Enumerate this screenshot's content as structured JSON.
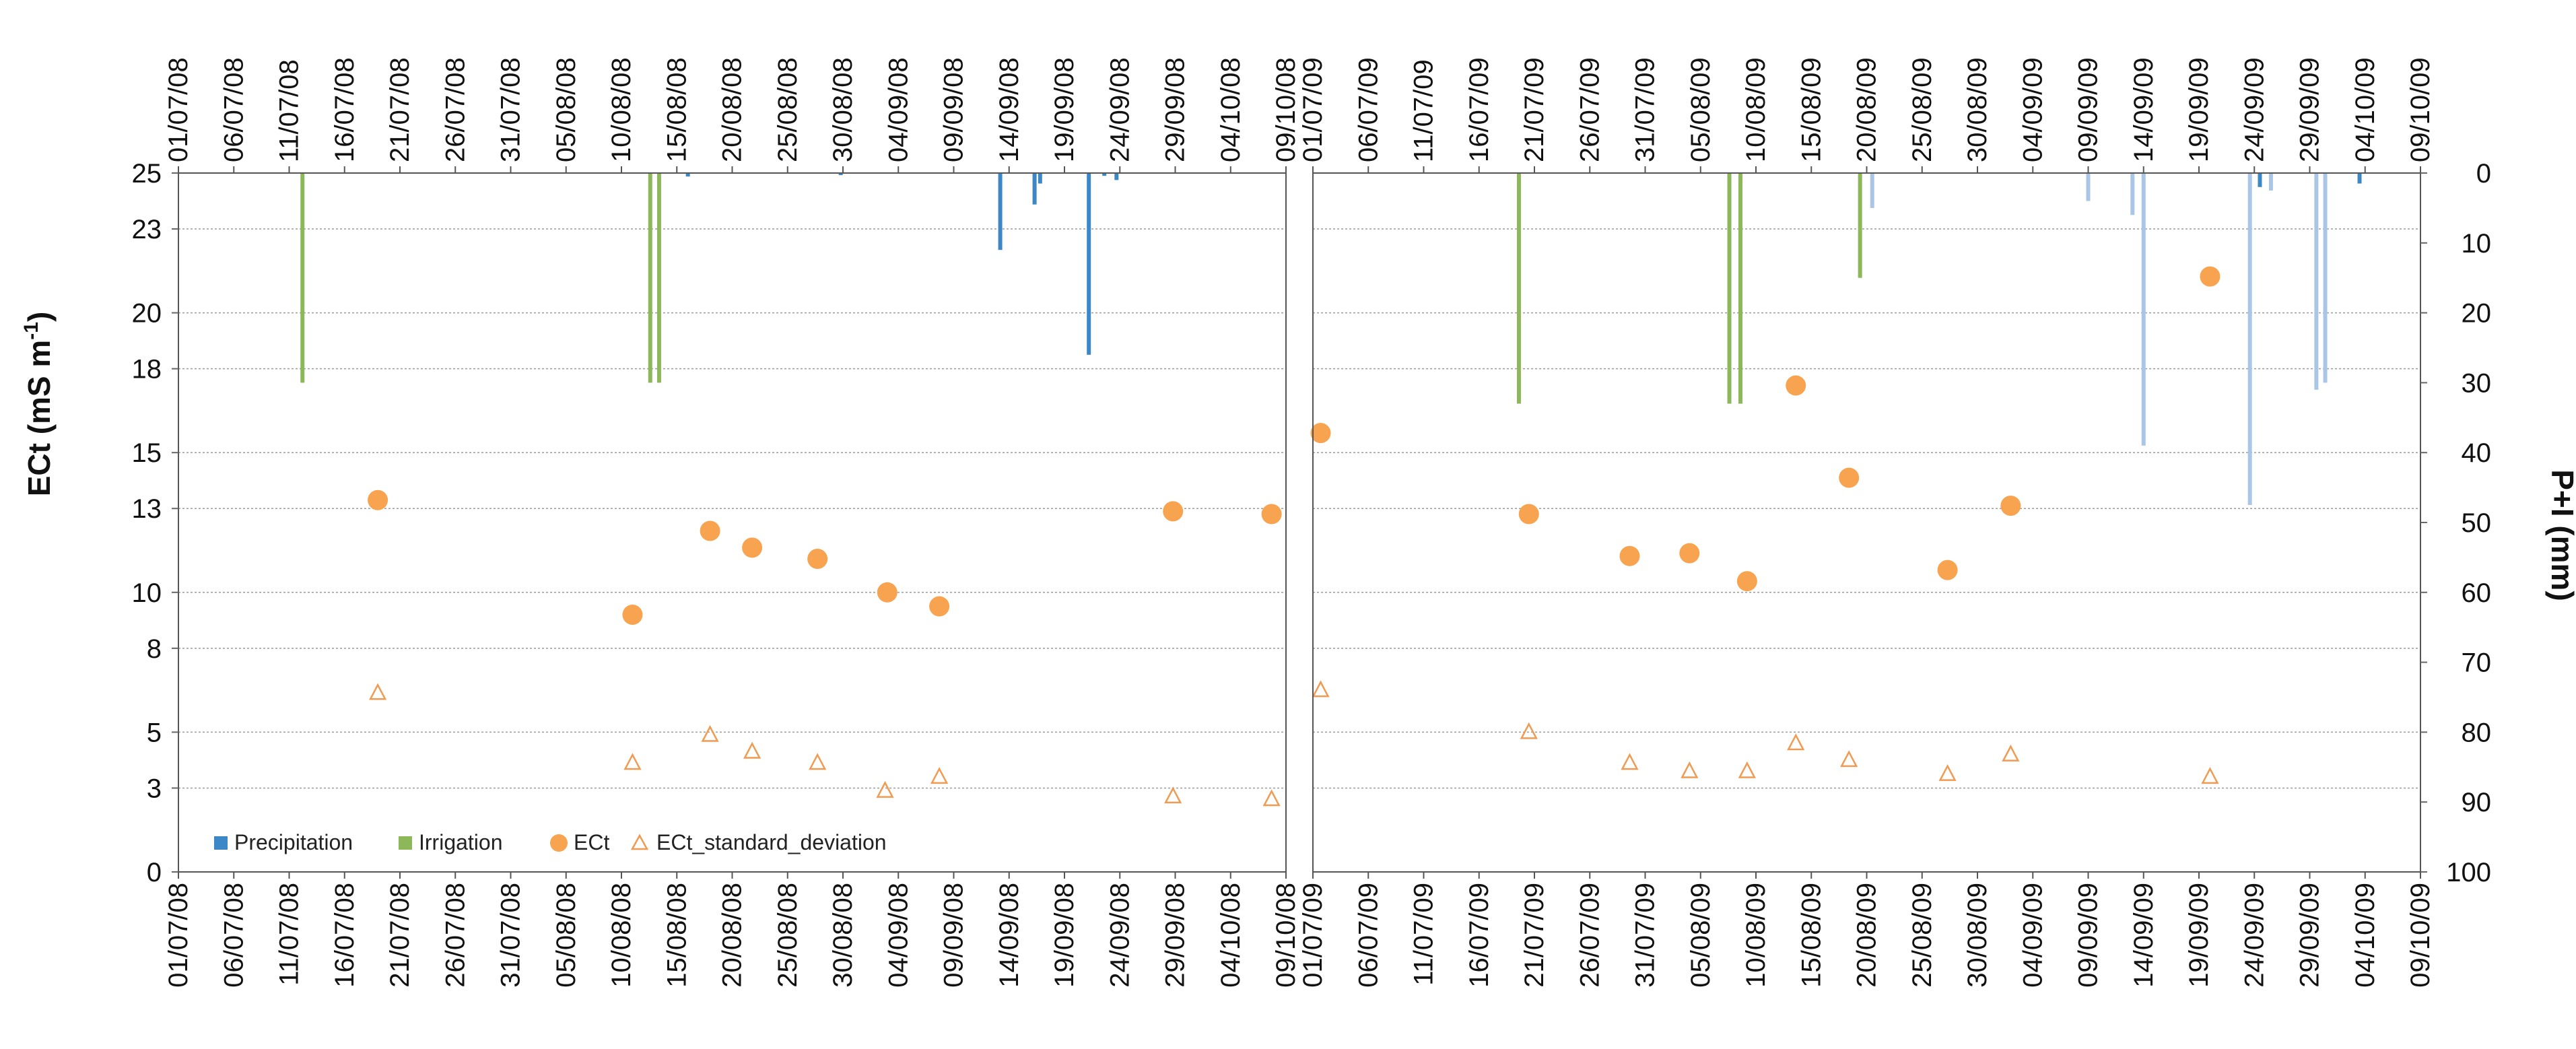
{
  "chart_data": {
    "type": "bar+scatter",
    "layout": "two-panel",
    "ylabel_left": "ECt (mS m",
    "ylabel_left_sup": "-1",
    "ylabel_left_close": ")",
    "ylabel_right": "P+I (mm)",
    "y_left_ticks": [
      0,
      3,
      5,
      8,
      10,
      13,
      15,
      18,
      20,
      23,
      25
    ],
    "y_left_lim": [
      0,
      25
    ],
    "y_right_ticks": [
      0,
      10,
      20,
      30,
      40,
      50,
      60,
      70,
      80,
      90,
      100
    ],
    "y_right_lim": [
      100,
      0
    ],
    "colors": {
      "precipitation": "#3c87c6",
      "precipitation_light": "#aac6e6",
      "irrigation": "#8db85a",
      "ect": "#f7a350",
      "ect_sd": "#f09a52",
      "grid": "#9a9a9a"
    },
    "legend": {
      "position": "bottom-left",
      "precipitation": "Precipitation",
      "irrigation": "Irrigation",
      "ect": "ECt",
      "ect_sd": "ECt_standard_deviation"
    },
    "panels": [
      {
        "year": "2008",
        "x_ticks": [
          "01/07/08",
          "06/07/08",
          "11/07/08",
          "16/07/08",
          "21/07/08",
          "26/07/08",
          "31/07/08",
          "05/08/08",
          "10/08/08",
          "15/08/08",
          "20/08/08",
          "25/08/08",
          "30/08/08",
          "04/09/08",
          "09/09/08",
          "14/09/08",
          "19/09/08",
          "24/09/08",
          "29/09/08",
          "04/10/08",
          "09/10/08"
        ],
        "x_range_days": [
          0,
          100
        ],
        "precipitation": [
          {
            "day": 46.0,
            "mm": 0.5
          },
          {
            "day": 59.8,
            "mm": 0.3
          },
          {
            "day": 74.2,
            "mm": 11.0
          },
          {
            "day": 77.3,
            "mm": 4.5
          },
          {
            "day": 77.8,
            "mm": 1.5
          },
          {
            "day": 82.2,
            "mm": 26.0
          },
          {
            "day": 83.6,
            "mm": 0.4
          },
          {
            "day": 84.7,
            "mm": 1.0
          }
        ],
        "irrigation": [
          {
            "day": 11.2,
            "mm": 30
          },
          {
            "day": 42.6,
            "mm": 30
          },
          {
            "day": 43.4,
            "mm": 30
          }
        ],
        "ect": [
          {
            "day": 18.0,
            "value": 13.3
          },
          {
            "day": 41.0,
            "value": 9.2
          },
          {
            "day": 48.0,
            "value": 12.2
          },
          {
            "day": 51.8,
            "value": 11.6
          },
          {
            "day": 57.7,
            "value": 11.2
          },
          {
            "day": 64.0,
            "value": 10.0
          },
          {
            "day": 68.7,
            "value": 9.5
          },
          {
            "day": 89.8,
            "value": 12.9
          },
          {
            "day": 98.7,
            "value": 12.8
          }
        ],
        "ect_sd": [
          {
            "day": 18.0,
            "value": 6.4
          },
          {
            "day": 41.0,
            "value": 3.9
          },
          {
            "day": 48.0,
            "value": 4.9
          },
          {
            "day": 51.8,
            "value": 4.3
          },
          {
            "day": 57.7,
            "value": 3.9
          },
          {
            "day": 63.8,
            "value": 2.9
          },
          {
            "day": 68.7,
            "value": 3.4
          },
          {
            "day": 89.8,
            "value": 2.7
          },
          {
            "day": 98.7,
            "value": 2.6
          }
        ]
      },
      {
        "year": "2009",
        "x_ticks": [
          "01/07/09",
          "06/07/09",
          "11/07/09",
          "16/07/09",
          "21/07/09",
          "26/07/09",
          "31/07/09",
          "05/08/09",
          "10/08/09",
          "15/08/09",
          "20/08/09",
          "25/08/09",
          "30/08/09",
          "04/09/09",
          "09/09/09",
          "14/09/09",
          "19/09/09",
          "24/09/09",
          "29/09/09",
          "04/10/09",
          "09/10/09"
        ],
        "x_range_days": [
          0,
          100
        ],
        "precipitation": [
          {
            "day": 50.5,
            "mm": 5.0
          },
          {
            "day": 70.0,
            "mm": 4.0
          },
          {
            "day": 74.0,
            "mm": 6.0
          },
          {
            "day": 75.0,
            "mm": 39.0
          },
          {
            "day": 84.6,
            "mm": 47.5
          },
          {
            "day": 85.5,
            "mm": 2.0
          },
          {
            "day": 86.5,
            "mm": 2.5
          },
          {
            "day": 90.6,
            "mm": 31.0
          },
          {
            "day": 91.4,
            "mm": 30.0
          },
          {
            "day": 94.5,
            "mm": 1.5
          }
        ],
        "irrigation": [
          {
            "day": 18.6,
            "mm": 33
          },
          {
            "day": 37.6,
            "mm": 33
          },
          {
            "day": 38.6,
            "mm": 33
          },
          {
            "day": 49.4,
            "mm": 15
          }
        ],
        "ect": [
          {
            "day": 0.7,
            "value": 15.7
          },
          {
            "day": 19.5,
            "value": 12.8
          },
          {
            "day": 28.6,
            "value": 11.3
          },
          {
            "day": 34.0,
            "value": 11.4
          },
          {
            "day": 39.2,
            "value": 10.4
          },
          {
            "day": 43.6,
            "value": 17.4
          },
          {
            "day": 48.4,
            "value": 14.1
          },
          {
            "day": 57.3,
            "value": 10.8
          },
          {
            "day": 63.0,
            "value": 13.1
          },
          {
            "day": 81.0,
            "value": 21.3
          }
        ],
        "ect_sd": [
          {
            "day": 0.7,
            "value": 6.5
          },
          {
            "day": 19.5,
            "value": 5.0
          },
          {
            "day": 28.6,
            "value": 3.9
          },
          {
            "day": 34.0,
            "value": 3.6
          },
          {
            "day": 39.2,
            "value": 3.6
          },
          {
            "day": 43.6,
            "value": 4.6
          },
          {
            "day": 48.4,
            "value": 4.0
          },
          {
            "day": 57.3,
            "value": 3.5
          },
          {
            "day": 63.0,
            "value": 4.2
          },
          {
            "day": 81.0,
            "value": 3.4
          }
        ]
      }
    ]
  }
}
